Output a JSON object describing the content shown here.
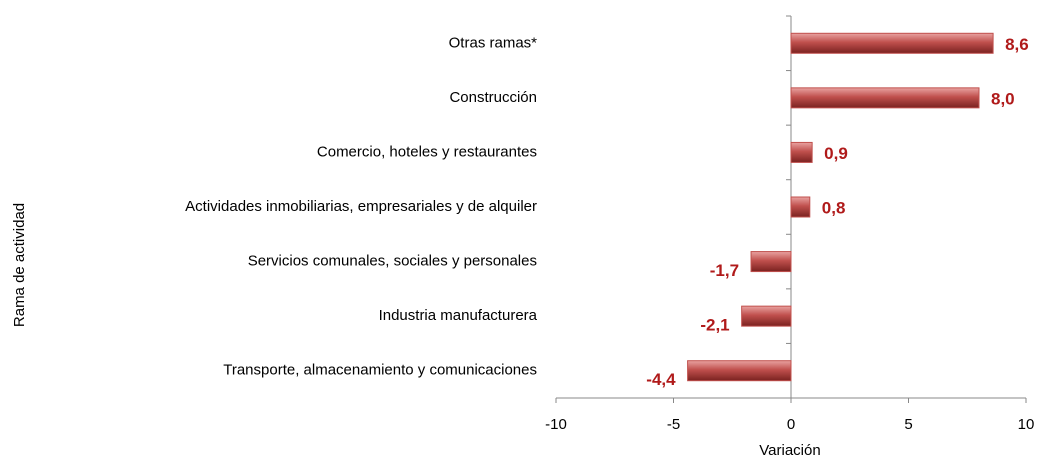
{
  "chart_data": {
    "type": "bar",
    "orientation": "horizontal",
    "categories": [
      "Otras ramas*",
      "Construcción",
      "Comercio, hoteles y restaurantes",
      "Actividades inmobiliarias, empresariales y de alquiler",
      "Servicios comunales, sociales y personales",
      "Industria manufacturera",
      "Transporte, almacenamiento y comunicaciones"
    ],
    "values": [
      8.6,
      8.0,
      0.9,
      0.8,
      -1.7,
      -2.1,
      -4.4
    ],
    "value_labels": [
      "8,6",
      "8,0",
      "0,9",
      "0,8",
      "-1,7",
      "-2,1",
      "-4,4"
    ],
    "color": "#c0504d",
    "label_color": "#b01a1a",
    "xlim": [
      -10,
      10
    ],
    "xticks": [
      -10,
      -5,
      0,
      5,
      10
    ],
    "x_label": "Variación",
    "y_label": "Rama de actividad"
  }
}
